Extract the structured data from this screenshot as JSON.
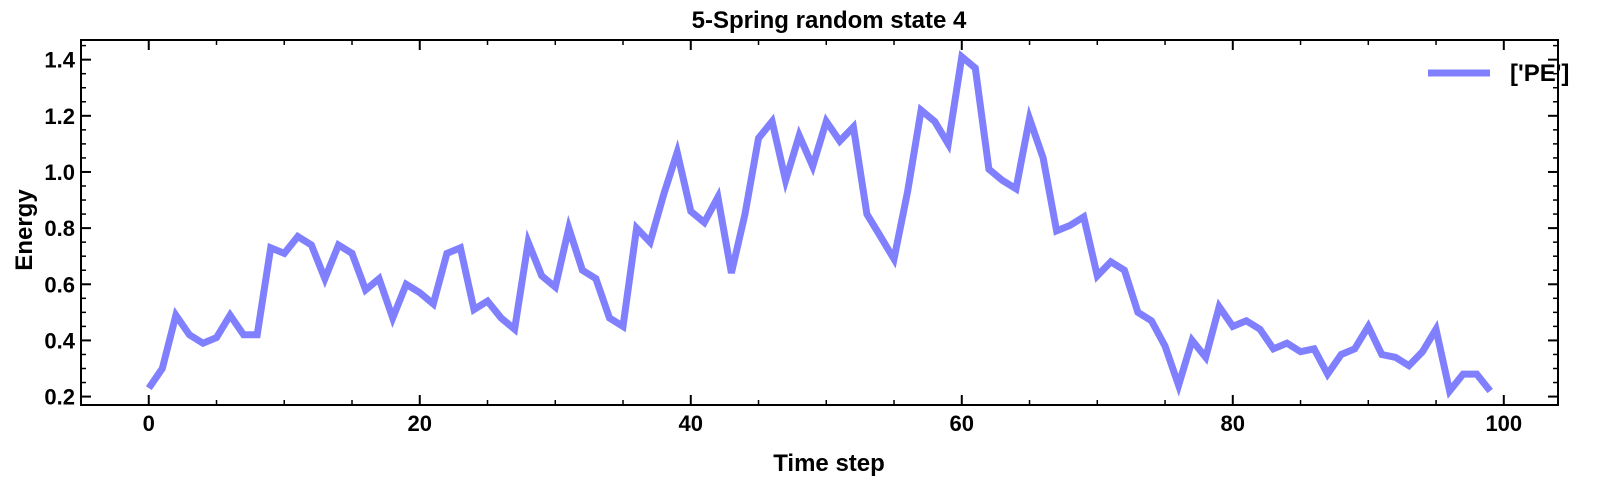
{
  "chart_data": {
    "type": "line",
    "title": "5-Spring random state 4",
    "xlabel": "Time step",
    "ylabel": "Energy",
    "xlim": [
      -5,
      104
    ],
    "ylim": [
      0.17,
      1.47
    ],
    "xticks": [
      0,
      20,
      40,
      60,
      80,
      100
    ],
    "xtick_labels": [
      "0",
      "20",
      "40",
      "60",
      "80",
      "100"
    ],
    "yticks": [
      0.2,
      0.4,
      0.6,
      0.8,
      1.0,
      1.2,
      1.4
    ],
    "ytick_labels": [
      "0.2",
      "0.4",
      "0.6",
      "0.8",
      "1.0",
      "1.2",
      "1.4"
    ],
    "grid": false,
    "legend_position": "top-right",
    "series": [
      {
        "name": "['PE']",
        "color": "#8080ff",
        "x": [
          0,
          1,
          2,
          3,
          4,
          5,
          6,
          7,
          8,
          9,
          10,
          11,
          12,
          13,
          14,
          15,
          16,
          17,
          18,
          19,
          20,
          21,
          22,
          23,
          24,
          25,
          26,
          27,
          28,
          29,
          30,
          31,
          32,
          33,
          34,
          35,
          36,
          37,
          38,
          39,
          40,
          41,
          42,
          43,
          44,
          45,
          46,
          47,
          48,
          49,
          50,
          51,
          52,
          53,
          54,
          55,
          56,
          57,
          58,
          59,
          60,
          61,
          62,
          63,
          64,
          65,
          66,
          67,
          68,
          69,
          70,
          71,
          72,
          73,
          74,
          75,
          76,
          77,
          78,
          79,
          80,
          81,
          82,
          83,
          84,
          85,
          86,
          87,
          88,
          89,
          90,
          91,
          92,
          93,
          94,
          95,
          96,
          97,
          98,
          99
        ],
        "y": [
          0.23,
          0.3,
          0.49,
          0.42,
          0.39,
          0.41,
          0.49,
          0.42,
          0.42,
          0.73,
          0.71,
          0.77,
          0.74,
          0.62,
          0.74,
          0.71,
          0.58,
          0.62,
          0.48,
          0.6,
          0.57,
          0.53,
          0.71,
          0.73,
          0.51,
          0.54,
          0.48,
          0.44,
          0.75,
          0.63,
          0.59,
          0.8,
          0.65,
          0.62,
          0.48,
          0.45,
          0.8,
          0.75,
          0.92,
          1.07,
          0.86,
          0.82,
          0.91,
          0.64,
          0.85,
          1.12,
          1.18,
          0.97,
          1.13,
          1.02,
          1.18,
          1.11,
          1.16,
          0.85,
          0.77,
          0.69,
          0.93,
          1.22,
          1.18,
          1.1,
          1.41,
          1.37,
          1.01,
          0.97,
          0.94,
          1.19,
          1.05,
          0.79,
          0.81,
          0.84,
          0.63,
          0.68,
          0.65,
          0.5,
          0.47,
          0.38,
          0.24,
          0.4,
          0.34,
          0.52,
          0.45,
          0.47,
          0.44,
          0.37,
          0.39,
          0.36,
          0.37,
          0.28,
          0.35,
          0.37,
          0.45,
          0.35,
          0.34,
          0.31,
          0.36,
          0.44,
          0.22,
          0.28,
          0.28,
          0.22
        ]
      }
    ]
  }
}
